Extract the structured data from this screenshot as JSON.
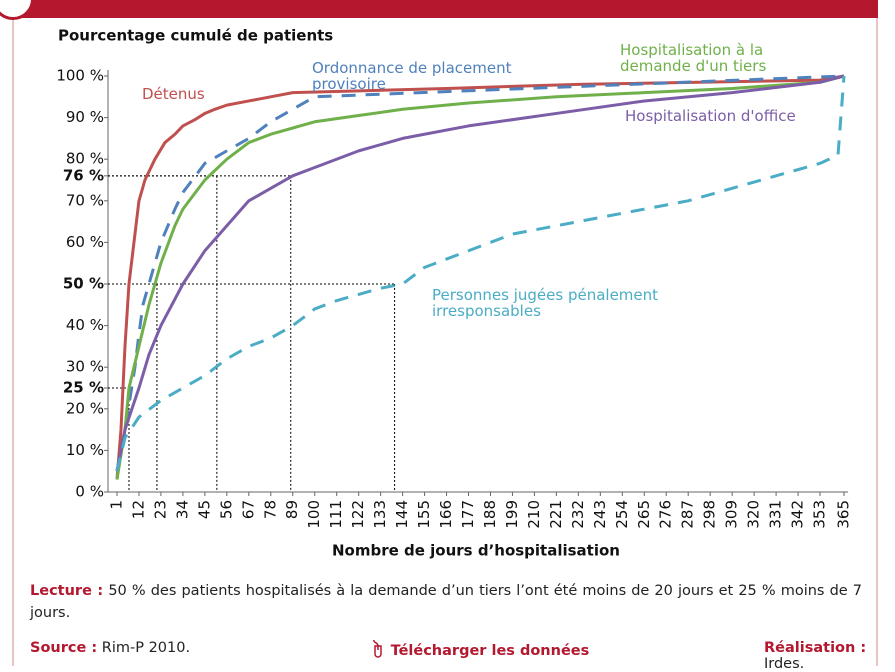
{
  "chart_data": {
    "type": "line",
    "y_label": "Pourcentage cumulé de patients",
    "x_label": "Nombre de jours d’hospitalisation",
    "xlim": [
      -3.5,
      365
    ],
    "ylim": [
      0,
      100
    ],
    "xticks": [
      1,
      12,
      23,
      34,
      45,
      56,
      67,
      78,
      89,
      100,
      111,
      122,
      133,
      144,
      155,
      166,
      177,
      188,
      199,
      210,
      221,
      232,
      243,
      254,
      265,
      276,
      287,
      298,
      309,
      320,
      331,
      342,
      353,
      365
    ],
    "yticks": [
      {
        "value": 0,
        "label": "0 %"
      },
      {
        "value": 10,
        "label": "10 %"
      },
      {
        "value": 20,
        "label": "20 %"
      },
      {
        "value": 25,
        "label": "25 %",
        "bold": true
      },
      {
        "value": 30,
        "label": "30 %"
      },
      {
        "value": 40,
        "label": "40 %"
      },
      {
        "value": 50,
        "label": "50 %",
        "bold": true
      },
      {
        "value": 60,
        "label": "60 %"
      },
      {
        "value": 70,
        "label": "70 %"
      },
      {
        "value": 76,
        "label": "76 %",
        "bold": true
      },
      {
        "value": 80,
        "label": "80 %"
      },
      {
        "value": 90,
        "label": "90 %"
      },
      {
        "value": 100,
        "label": "100 %"
      }
    ],
    "guides": [
      {
        "x": 7,
        "y": 25
      },
      {
        "x": 21,
        "y": 50
      },
      {
        "x": 51,
        "y": 76
      },
      {
        "x": 88,
        "y": 76
      },
      {
        "x": 140,
        "y": 50
      }
    ],
    "series": [
      {
        "name": "Détenus",
        "color": "#c0504d",
        "x": [
          1,
          3,
          5,
          7,
          10,
          12,
          15,
          20,
          25,
          30,
          34,
          40,
          45,
          50,
          56,
          67,
          78,
          89,
          166,
          232,
          353,
          365
        ],
        "values": [
          3,
          15,
          35,
          50,
          62,
          70,
          75,
          80,
          84,
          86,
          88,
          89.5,
          91,
          92,
          93,
          94,
          95,
          96,
          97,
          98,
          99,
          100
        ]
      },
      {
        "name": "Ordonnance de placement provisoire",
        "color": "#4f81bd",
        "dashed": true,
        "x": [
          1,
          5,
          10,
          12,
          14,
          17,
          20,
          23,
          30,
          34,
          45,
          56,
          67,
          78,
          89,
          100,
          365
        ],
        "values": [
          5,
          15,
          30,
          38,
          45,
          50,
          55,
          60,
          68,
          72,
          79,
          82,
          85,
          89,
          92,
          95,
          100
        ]
      },
      {
        "name": "Hospitalisation à la demande d'un tiers",
        "color": "#70b04a",
        "x": [
          1,
          5,
          7,
          12,
          17,
          20,
          23,
          30,
          34,
          45,
          56,
          67,
          78,
          89,
          100,
          122,
          144,
          177,
          221,
          265,
          309,
          353,
          365
        ],
        "values": [
          3,
          15,
          25,
          35,
          45,
          50,
          55,
          64,
          68,
          75,
          80,
          84,
          86,
          87.5,
          89,
          90.5,
          92,
          93.5,
          95,
          96,
          97,
          98.5,
          100
        ]
      },
      {
        "name": "Hospitalisation d'office",
        "color": "#7b5ea7",
        "x": [
          1,
          5,
          12,
          17,
          23,
          34,
          45,
          56,
          67,
          78,
          89,
          100,
          122,
          144,
          177,
          221,
          265,
          309,
          353,
          365
        ],
        "values": [
          5,
          15,
          25,
          33,
          40,
          50,
          58,
          64,
          70,
          73,
          76,
          78,
          82,
          85,
          88,
          91,
          94,
          96,
          98.5,
          100
        ]
      },
      {
        "name": "Personnes jugées pénalement irresponsables",
        "color": "#4bacc6",
        "dashed": true,
        "x": [
          1,
          5,
          12,
          23,
          34,
          45,
          56,
          67,
          78,
          89,
          100,
          111,
          133,
          144,
          155,
          177,
          199,
          221,
          243,
          265,
          287,
          309,
          331,
          353,
          362,
          365
        ],
        "values": [
          5,
          13,
          18,
          22,
          25,
          28,
          32,
          35,
          37,
          40,
          44,
          46,
          49,
          50,
          54,
          58,
          62,
          64,
          66,
          68,
          70,
          73,
          76,
          79,
          81,
          100
        ]
      }
    ]
  },
  "footer": {
    "lecture_label": "Lecture :",
    "lecture_text": "50 % des patients hospitalisés à la demande d’un tiers l’ont été moins de 20 jours et 25 % moins de 7 jours.",
    "source_label": "Source :",
    "source_text": "Rim-P 2010.",
    "download": "Télécharger les données",
    "credit_label": "Réalisation :",
    "credit_text": "Irdes."
  }
}
